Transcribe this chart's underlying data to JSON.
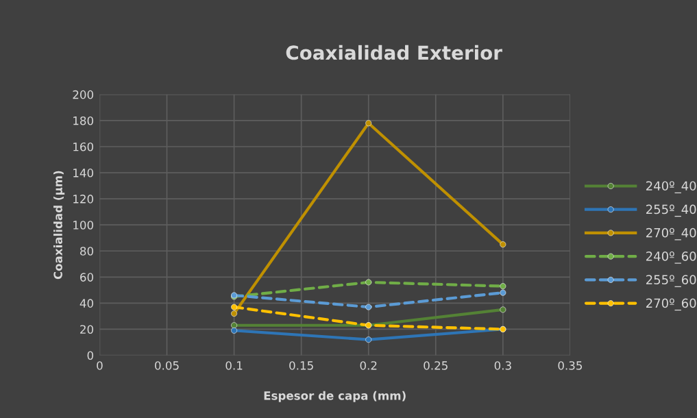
{
  "chart_data": {
    "type": "line",
    "title": "Coaxialidad Exterior",
    "xlabel": "Espesor de capa (mm)",
    "ylabel": "Coaxialidad (µm)",
    "x": [
      0.1,
      0.2,
      0.3
    ],
    "series": [
      {
        "name": "240º_40",
        "color": "#548235",
        "values": [
          23,
          23,
          35
        ],
        "line_style": "solid"
      },
      {
        "name": "255º_40",
        "color": "#2e75b6",
        "values": [
          19,
          12,
          20
        ],
        "line_style": "solid"
      },
      {
        "name": "270º_40",
        "color": "#bf9000",
        "values": [
          32,
          178,
          85
        ],
        "line_style": "solid"
      },
      {
        "name": "240º_60",
        "color": "#70ad47",
        "values": [
          45,
          56,
          53
        ],
        "line_style": "dashed"
      },
      {
        "name": "255º_60",
        "color": "#5b9bd5",
        "values": [
          46,
          37,
          48
        ],
        "line_style": "dashed"
      },
      {
        "name": "270º_60",
        "color": "#ffc000",
        "values": [
          37,
          23,
          20
        ],
        "line_style": "dashed"
      }
    ],
    "xlim": [
      0,
      0.35
    ],
    "xticks": [
      0,
      0.05,
      0.1,
      0.15,
      0.2,
      0.25,
      0.3,
      0.35
    ],
    "ylim": [
      0,
      200
    ],
    "yticks": [
      0,
      20,
      40,
      60,
      80,
      100,
      120,
      140,
      160,
      180,
      200
    ],
    "grid": true,
    "legend": "right",
    "marker": "circle"
  }
}
